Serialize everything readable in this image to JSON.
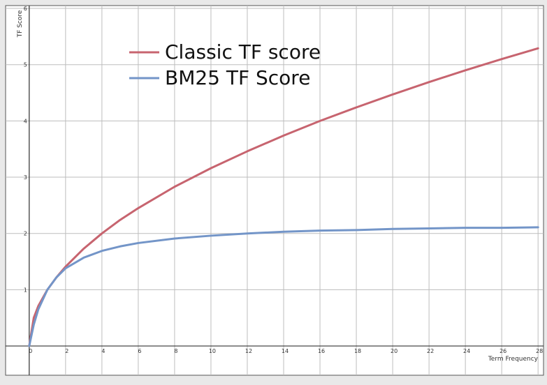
{
  "chart_data": {
    "type": "line",
    "x_label": "Term Frequency",
    "y_label": "TF Score",
    "x": [
      0,
      0.25,
      0.5,
      1,
      1.5,
      2,
      3,
      4,
      5,
      6,
      8,
      10,
      12,
      14,
      16,
      18,
      20,
      22,
      24,
      26,
      28
    ],
    "series": [
      {
        "name": "Classic TF score",
        "color": "#c7646f",
        "values": [
          0,
          0.5,
          0.71,
          1,
          1.22,
          1.41,
          1.73,
          2,
          2.24,
          2.45,
          2.83,
          3.16,
          3.46,
          3.74,
          4,
          4.24,
          4.47,
          4.69,
          4.9,
          5.1,
          5.29
        ]
      },
      {
        "name": "BM25 TF Score",
        "color": "#7395c8",
        "values": [
          0,
          0.38,
          0.65,
          1,
          1.22,
          1.38,
          1.57,
          1.69,
          1.77,
          1.83,
          1.91,
          1.96,
          2,
          2.03,
          2.05,
          2.06,
          2.08,
          2.09,
          2.1,
          2.1,
          2.11
        ]
      }
    ],
    "xlim": [
      -1.3,
      28.3
    ],
    "ylim": [
      -0.52,
      6.05
    ],
    "xticks": [
      0,
      2,
      4,
      6,
      8,
      10,
      12,
      14,
      16,
      18,
      20,
      22,
      24,
      26,
      28
    ],
    "yticks": [
      1,
      2,
      3,
      4,
      5,
      6
    ],
    "grid": true
  }
}
